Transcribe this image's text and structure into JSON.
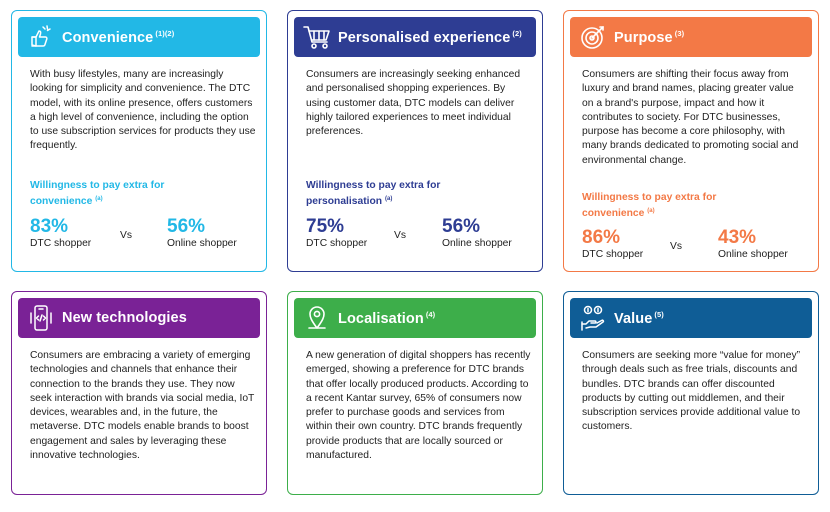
{
  "colors": {
    "convenience": "#22b8e6",
    "personalised": "#2e3d93",
    "purpose": "#f37946",
    "new_technologies": "#7a2296",
    "localisation": "#3dae4a",
    "value": "#0f5d96"
  },
  "cards": {
    "convenience": {
      "icon": "hand-speed-icon",
      "title": "Convenience",
      "ref": "(1)(2)",
      "body": "With busy lifestyles, many are increasingly looking for simplicity and convenience. The DTC model, with its online presence, offers customers a high level of convenience, including the option to use subscription services for products they use frequently.",
      "wtp_line1": "Willingness to pay extra for",
      "wtp_line2": "convenience",
      "wtp_ref": "(a)",
      "stat1_value": "83%",
      "stat1_label": "DTC shopper",
      "vs": "Vs",
      "stat2_value": "56%",
      "stat2_label": "Online shopper"
    },
    "personalised": {
      "icon": "shopping-cart-icon",
      "title": "Personalised experience",
      "ref": "(2)",
      "body": "Consumers are increasingly seeking enhanced and personalised shopping experiences. By using customer data, DTC models can deliver highly tailored experiences to meet individual preferences.",
      "wtp_line1": "Willingness to pay extra for",
      "wtp_line2": "personalisation",
      "wtp_ref": "(a)",
      "stat1_value": "75%",
      "stat1_label": "DTC shopper",
      "vs": "Vs",
      "stat2_value": "56%",
      "stat2_label": "Online shopper"
    },
    "purpose": {
      "icon": "target-icon",
      "title": "Purpose",
      "ref": "(3)",
      "body": "Consumers are shifting their focus away from luxury and brand names, placing greater value on a brand's purpose, impact and how it contributes to society. For DTC businesses, purpose has become a core philosophy, with many brands dedicated to promoting social and environmental change.",
      "wtp_line1": "Willingness to pay extra for",
      "wtp_line2": "convenience",
      "wtp_ref": "(a)",
      "stat1_value": "86%",
      "stat1_label": "DTC shopper",
      "vs": "Vs",
      "stat2_value": "43%",
      "stat2_label": "Online shopper"
    },
    "new_technologies": {
      "icon": "smartphone-code-icon",
      "title": "New technologies",
      "ref": "",
      "body": "Consumers are embracing a variety of emerging technologies and channels that enhance their connection to the brands they use. They now seek interaction with brands via social media, IoT devices, wearables and, in the future, the metaverse. DTC models enable brands to boost engagement and sales by leveraging these innovative technologies."
    },
    "localisation": {
      "icon": "location-pin-icon",
      "title": "Localisation",
      "ref": "(4)",
      "body": "A new generation of digital shoppers has recently emerged, showing a preference for DTC brands that offer locally produced products. According to a recent Kantar survey, 65% of consumers now prefer to purchase goods and services from within their own country. DTC brands frequently provide products that are locally sourced or manufactured."
    },
    "value": {
      "icon": "hand-money-icon",
      "title": "Value",
      "ref": "(5)",
      "body": "Consumers are seeking more “value for money” through deals such as free trials, discounts and bundles. DTC brands can offer discounted products by cutting out middlemen, and their subscription services provide additional value to customers."
    }
  }
}
